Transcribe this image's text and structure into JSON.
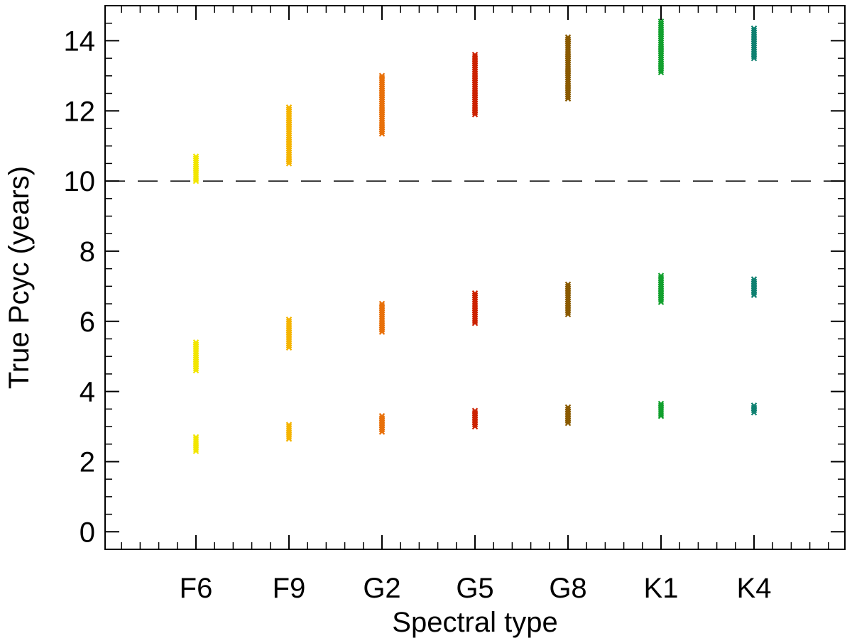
{
  "chart_data": {
    "type": "scatter",
    "xlabel": "Spectral type",
    "ylabel": "True Pcyc (years)",
    "categories": [
      "F6",
      "F9",
      "G2",
      "G5",
      "G8",
      "K1",
      "K4"
    ],
    "ylim": [
      -0.5,
      15
    ],
    "yticks": [
      0,
      2,
      4,
      6,
      8,
      10,
      12,
      14
    ],
    "reference_line": {
      "y": 10,
      "style": "dashed"
    },
    "marker": "x",
    "series": [
      {
        "category": "F6",
        "color": "#f2e600",
        "groups": [
          {
            "min": 10.0,
            "max": 10.7
          },
          {
            "min": 4.6,
            "max": 5.4
          },
          {
            "min": 2.3,
            "max": 2.7
          }
        ]
      },
      {
        "category": "F9",
        "color": "#f5b400",
        "groups": [
          {
            "min": 10.5,
            "max": 12.1
          },
          {
            "min": 5.25,
            "max": 6.05
          },
          {
            "min": 2.65,
            "max": 3.05
          }
        ]
      },
      {
        "category": "G2",
        "color": "#e8700a",
        "groups": [
          {
            "min": 11.35,
            "max": 13.0
          },
          {
            "min": 5.7,
            "max": 6.5
          },
          {
            "min": 2.85,
            "max": 3.3
          }
        ]
      },
      {
        "category": "G5",
        "color": "#cc2200",
        "groups": [
          {
            "min": 11.9,
            "max": 13.6
          },
          {
            "min": 5.95,
            "max": 6.8
          },
          {
            "min": 3.0,
            "max": 3.45
          }
        ]
      },
      {
        "category": "G8",
        "color": "#8a5a00",
        "groups": [
          {
            "min": 12.35,
            "max": 14.1
          },
          {
            "min": 6.2,
            "max": 7.05
          },
          {
            "min": 3.1,
            "max": 3.55
          }
        ]
      },
      {
        "category": "K1",
        "color": "#12a02e",
        "groups": [
          {
            "min": 13.1,
            "max": 14.55
          },
          {
            "min": 6.55,
            "max": 7.3
          },
          {
            "min": 3.3,
            "max": 3.65
          }
        ]
      },
      {
        "category": "K4",
        "color": "#0e8070",
        "groups": [
          {
            "min": 13.5,
            "max": 14.35
          },
          {
            "min": 6.75,
            "max": 7.2
          },
          {
            "min": 3.4,
            "max": 3.6
          }
        ]
      }
    ]
  }
}
